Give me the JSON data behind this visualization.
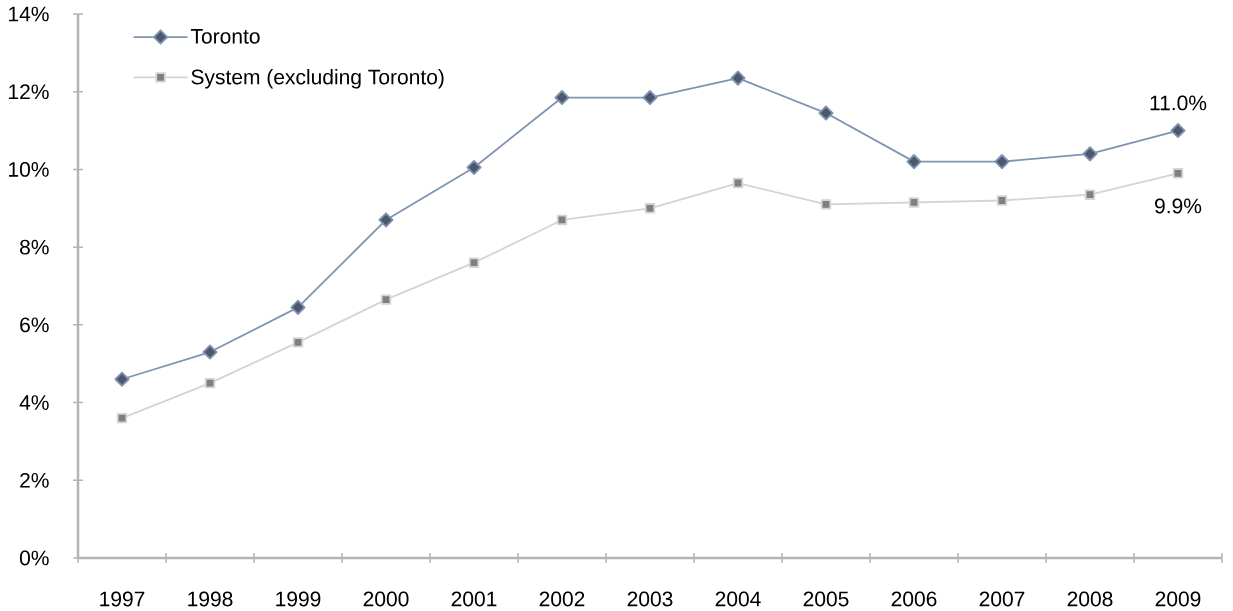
{
  "chart_data": {
    "type": "line",
    "categories": [
      "1997",
      "1998",
      "1999",
      "2000",
      "2001",
      "2002",
      "2003",
      "2004",
      "2005",
      "2006",
      "2007",
      "2008",
      "2009"
    ],
    "series": [
      {
        "name": "Toronto",
        "color": "#7f93b3",
        "marker": "diamond",
        "values": [
          4.6,
          5.3,
          6.45,
          8.7,
          10.05,
          11.85,
          11.85,
          12.35,
          11.45,
          10.2,
          10.2,
          10.4,
          11.0
        ]
      },
      {
        "name": "System (excluding Toronto)",
        "color": "#d4d4d4",
        "marker": "square",
        "values": [
          3.6,
          4.5,
          5.55,
          6.65,
          7.6,
          8.7,
          9.0,
          9.65,
          9.1,
          9.15,
          9.2,
          9.35,
          9.9
        ]
      }
    ],
    "ylim": [
      0,
      14
    ],
    "yticks": [
      {
        "value": 0,
        "label": "0%"
      },
      {
        "value": 2,
        "label": "2%"
      },
      {
        "value": 4,
        "label": "4%"
      },
      {
        "value": 6,
        "label": "6%"
      },
      {
        "value": 8,
        "label": "8%"
      },
      {
        "value": 10,
        "label": "10%"
      },
      {
        "value": 12,
        "label": "12%"
      },
      {
        "value": 14,
        "label": "14%"
      }
    ],
    "legend": "top left",
    "annotations": [
      {
        "text": "11.0%",
        "x": "2009",
        "y": 11.0
      },
      {
        "text": "9.9%",
        "x": "2009",
        "y": 9.9
      }
    ]
  }
}
